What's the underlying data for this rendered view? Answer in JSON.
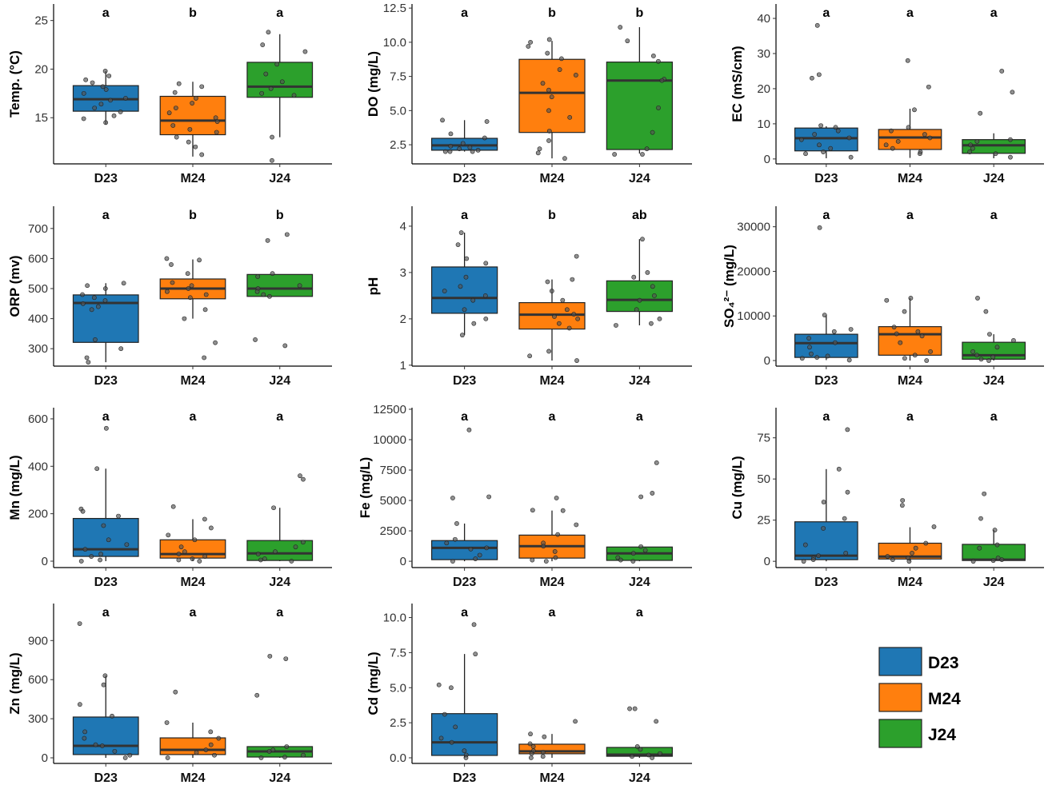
{
  "chart_data": {
    "type": "boxplot",
    "categories": [
      "D23",
      "M24",
      "J24"
    ],
    "colors": {
      "D23": "#1f77b4",
      "M24": "#ff7f0e",
      "J24": "#2ca02c"
    },
    "legend": {
      "placement": "bottom-right",
      "entries": [
        "D23",
        "M24",
        "J24"
      ]
    },
    "panels": [
      {
        "ylabel": "Temp. (°C)",
        "ylim": [
          10.25,
          26.7
        ],
        "ticks": [
          15,
          20,
          25
        ],
        "tick_labels": [
          "15",
          "20",
          "25"
        ],
        "letters": [
          "a",
          "b",
          "a"
        ],
        "boxes": [
          [
            14.3,
            15.67,
            16.9,
            18.3,
            19.8
          ],
          [
            11.0,
            13.25,
            14.7,
            17.2,
            18.7
          ],
          [
            13.0,
            17.1,
            18.2,
            20.7,
            23.6
          ]
        ],
        "points": [
          [
            19.8,
            19.3,
            18.9,
            18.6,
            18.2,
            17.9,
            17.5,
            17.0,
            16.8,
            16.4,
            16.0,
            15.6,
            15.2,
            14.9,
            14.5
          ],
          [
            18.5,
            18.2,
            17.6,
            17.0,
            16.5,
            16.0,
            15.5,
            15.0,
            14.6,
            14.2,
            13.8,
            13.5,
            13.0,
            12.5,
            12.0,
            11.2
          ],
          [
            23.8,
            22.5,
            21.8,
            20.5,
            19.5,
            18.7,
            18.0,
            17.5,
            17.3,
            13.0,
            10.6
          ]
        ]
      },
      {
        "ylabel": "DO (mg/L)",
        "ylim": [
          1.1,
          12.8
        ],
        "ticks": [
          2.5,
          5,
          7.5,
          10,
          12.5
        ],
        "tick_labels": [
          "2.5",
          "5.0",
          "7.5",
          "10.0",
          "12.5"
        ],
        "letters": [
          "a",
          "b",
          "b"
        ],
        "boxes": [
          [
            2.0,
            2.1,
            2.45,
            2.97,
            4.3
          ],
          [
            1.5,
            3.4,
            6.3,
            8.75,
            10.1
          ],
          [
            1.85,
            2.15,
            7.2,
            8.55,
            11.1
          ]
        ],
        "points": [
          [
            4.3,
            4.2,
            3.3,
            3.0,
            2.6,
            2.4,
            2.3,
            2.2,
            2.1,
            2.0,
            2.0,
            2.0
          ],
          [
            10.2,
            10.0,
            9.7,
            9.2,
            8.8,
            8.0,
            7.6,
            7.0,
            6.5,
            6.0,
            5.0,
            4.5,
            3.5,
            2.8,
            2.2,
            1.9,
            1.5
          ],
          [
            11.1,
            10.1,
            9.0,
            8.6,
            7.3,
            7.2,
            5.2,
            3.4,
            2.2,
            1.8,
            1.8
          ]
        ]
      },
      {
        "ylabel": "EC (mS/cm)",
        "ylim": [
          -1.4,
          44.1
        ],
        "ticks": [
          0,
          10,
          20,
          30,
          40
        ],
        "tick_labels": [
          "0",
          "10",
          "20",
          "30",
          "40"
        ],
        "letters": [
          "a",
          "a",
          "a"
        ],
        "boxes": [
          [
            0.2,
            2.3,
            5.9,
            8.8,
            9.3
          ],
          [
            0.3,
            2.7,
            6.1,
            8.4,
            14.3
          ],
          [
            0.2,
            1.6,
            3.9,
            5.5,
            7.3
          ]
        ],
        "points": [
          [
            38,
            24,
            23,
            9.5,
            9,
            8,
            7,
            6,
            5.5,
            4,
            3,
            2,
            1.5,
            0.5
          ],
          [
            28,
            20.5,
            14,
            9,
            8,
            7,
            6,
            5,
            4,
            3,
            2,
            1.5
          ],
          [
            25,
            19,
            13,
            5.5,
            5,
            4,
            3,
            2,
            1.5,
            0.5
          ]
        ]
      },
      {
        "ylabel": "ORP (mv)",
        "ylim": [
          242,
          774
        ],
        "ticks": [
          300,
          400,
          500,
          600,
          700
        ],
        "tick_labels": [
          "300",
          "400",
          "500",
          "600",
          "700"
        ],
        "letters": [
          "a",
          "b",
          "b"
        ],
        "boxes": [
          [
            255,
            321,
            452,
            479,
            518
          ],
          [
            400,
            466,
            500,
            532,
            597
          ],
          [
            474,
            474,
            500,
            547,
            547
          ]
        ],
        "points": [
          [
            518,
            510,
            500,
            480,
            470,
            460,
            450,
            440,
            430,
            330,
            300,
            270,
            255
          ],
          [
            600,
            595,
            580,
            550,
            520,
            510,
            500,
            490,
            480,
            470,
            430,
            400,
            320,
            270
          ],
          [
            680,
            660,
            550,
            540,
            510,
            500,
            490,
            480,
            474,
            330,
            310
          ]
        ]
      },
      {
        "ylabel": "pH",
        "ylim": [
          0.98,
          4.43
        ],
        "ticks": [
          1,
          2,
          3,
          4
        ],
        "tick_labels": [
          "1",
          "2",
          "3",
          "4"
        ],
        "letters": [
          "a",
          "b",
          "ab"
        ],
        "boxes": [
          [
            1.65,
            2.12,
            2.45,
            3.12,
            3.86
          ],
          [
            1.1,
            1.78,
            2.09,
            2.35,
            2.85
          ],
          [
            1.86,
            2.16,
            2.41,
            2.82,
            3.72
          ]
        ],
        "points": [
          [
            3.86,
            3.6,
            3.3,
            3.2,
            2.9,
            2.7,
            2.6,
            2.5,
            2.4,
            2.2,
            2.0,
            1.9,
            1.65
          ],
          [
            3.35,
            2.85,
            2.8,
            2.6,
            2.4,
            2.2,
            2.1,
            2.05,
            2.0,
            1.9,
            1.8,
            1.3,
            1.2,
            1.1
          ],
          [
            3.72,
            3.0,
            2.9,
            2.7,
            2.5,
            2.4,
            2.2,
            2.0,
            1.9,
            1.86
          ]
        ]
      },
      {
        "ylabel": "SO₄²⁻ (mg/L)",
        "ylim": [
          -1250,
          34600
        ],
        "ticks": [
          0,
          10000,
          20000,
          30000
        ],
        "tick_labels": [
          "0",
          "10000",
          "20000",
          "30000"
        ],
        "letters": [
          "a",
          "a",
          "a"
        ],
        "boxes": [
          [
            100,
            700,
            3900,
            5900,
            10200
          ],
          [
            0,
            1200,
            5900,
            7600,
            14000
          ],
          [
            0,
            300,
            1200,
            4100,
            5900
          ]
        ],
        "points": [
          [
            29800,
            10200,
            7000,
            6500,
            5000,
            4000,
            3000,
            1500,
            1000,
            700,
            500,
            100
          ],
          [
            14000,
            13500,
            11000,
            7500,
            6500,
            6000,
            5500,
            4000,
            2000,
            1200,
            500,
            0
          ],
          [
            14000,
            11000,
            5900,
            4500,
            3000,
            2000,
            1200,
            800,
            300,
            0
          ]
        ]
      },
      {
        "ylabel": "Mn (mg/L)",
        "ylim": [
          -27,
          647
        ],
        "ticks": [
          0,
          200,
          400,
          600
        ],
        "tick_labels": [
          "0",
          "200",
          "400",
          "600"
        ],
        "letters": [
          "a",
          "a",
          "a"
        ],
        "boxes": [
          [
            0,
            20,
            50,
            180,
            390
          ],
          [
            0,
            13,
            30,
            90,
            177
          ],
          [
            0,
            3,
            33,
            87,
            225
          ]
        ],
        "points": [
          [
            560,
            390,
            220,
            210,
            190,
            150,
            90,
            70,
            50,
            30,
            20,
            5,
            0
          ],
          [
            230,
            177,
            140,
            110,
            90,
            60,
            40,
            30,
            20,
            10,
            5,
            0
          ],
          [
            360,
            345,
            225,
            80,
            60,
            40,
            30,
            10,
            5,
            0
          ]
        ]
      },
      {
        "ylabel": "Fe (mg/L)",
        "ylim": [
          -520,
          12630
        ],
        "ticks": [
          0,
          2500,
          5000,
          7500,
          10000,
          12500
        ],
        "tick_labels": [
          "0",
          "2500",
          "5000",
          "7500",
          "10000",
          "12500"
        ],
        "letters": [
          "a",
          "a",
          "a"
        ],
        "boxes": [
          [
            0,
            130,
            1100,
            1700,
            3100
          ],
          [
            0,
            260,
            1240,
            2150,
            4170
          ],
          [
            0,
            70,
            650,
            1170,
            1200
          ]
        ],
        "points": [
          [
            10800,
            5300,
            5200,
            3100,
            1800,
            1500,
            1100,
            1000,
            500,
            200,
            0
          ],
          [
            5200,
            4200,
            4170,
            3000,
            2200,
            1500,
            1240,
            800,
            300,
            100,
            0
          ],
          [
            8100,
            5600,
            5300,
            1200,
            900,
            650,
            300,
            100,
            0
          ]
        ]
      },
      {
        "ylabel": "Cu (mg/L)",
        "ylim": [
          -3.8,
          93.3
        ],
        "ticks": [
          0,
          25,
          50,
          75
        ],
        "tick_labels": [
          "0",
          "25",
          "50",
          "75"
        ],
        "letters": [
          "a",
          "a",
          "a"
        ],
        "boxes": [
          [
            0,
            1,
            3.4,
            24,
            56
          ],
          [
            0,
            1.4,
            2.9,
            11,
            20.7
          ],
          [
            0,
            0.5,
            1,
            10.3,
            19
          ]
        ],
        "points": [
          [
            80,
            56,
            42,
            36,
            26,
            20,
            10,
            5,
            3.4,
            2,
            1,
            0
          ],
          [
            37,
            34,
            21,
            11,
            8,
            5,
            3,
            2,
            1,
            0
          ],
          [
            41,
            26,
            19,
            10,
            8,
            2,
            1,
            0.5,
            0
          ]
        ]
      },
      {
        "ylabel": "Zn (mg/L)",
        "ylim": [
          -43,
          1184
        ],
        "ticks": [
          0,
          300,
          600,
          900
        ],
        "tick_labels": [
          "0",
          "300",
          "600",
          "900"
        ],
        "letters": [
          "a",
          "a",
          "a"
        ],
        "boxes": [
          [
            0,
            25,
            92,
            313,
            630
          ],
          [
            0,
            25,
            61,
            153,
            270
          ],
          [
            0,
            6,
            49,
            86,
            86
          ]
        ],
        "points": [
          [
            1030,
            630,
            560,
            410,
            320,
            200,
            150,
            100,
            92,
            50,
            20,
            0
          ],
          [
            505,
            270,
            200,
            150,
            100,
            61,
            40,
            20,
            0
          ],
          [
            780,
            760,
            480,
            86,
            60,
            49,
            20,
            5,
            0
          ]
        ]
      },
      {
        "ylabel": "Cd (mg/L)",
        "ylim": [
          -0.4,
          11.0
        ],
        "ticks": [
          0,
          2.5,
          5,
          7.5,
          10
        ],
        "tick_labels": [
          "0.0",
          "2.5",
          "5.0",
          "7.5",
          "10.0"
        ],
        "letters": [
          "a",
          "a",
          "a"
        ],
        "boxes": [
          [
            0,
            0.17,
            1.1,
            3.15,
            7.4
          ],
          [
            0,
            0.29,
            0.46,
            0.97,
            1.7
          ],
          [
            0,
            0.11,
            0.23,
            0.74,
            0.8
          ]
        ],
        "points": [
          [
            9.5,
            7.4,
            5.2,
            5.0,
            3.1,
            2.2,
            1.4,
            1.1,
            0.5,
            0.2,
            0
          ],
          [
            2.6,
            1.7,
            1.5,
            1.0,
            0.8,
            0.5,
            0.4,
            0.3,
            0.1,
            0
          ],
          [
            3.5,
            3.5,
            2.6,
            0.8,
            0.6,
            0.3,
            0.2,
            0.1,
            0
          ]
        ]
      }
    ]
  }
}
